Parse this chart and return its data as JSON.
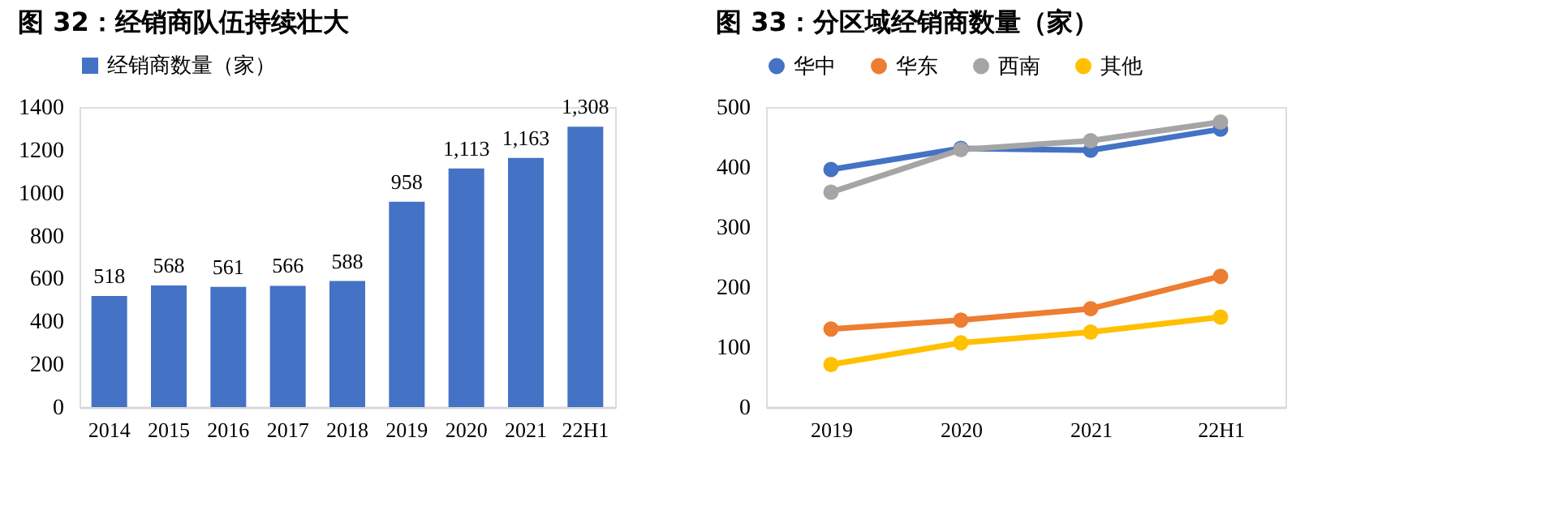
{
  "chart_data": [
    {
      "type": "bar",
      "title": "图 32：经销商队伍持续壮大",
      "categories": [
        "2014",
        "2015",
        "2016",
        "2017",
        "2018",
        "2019",
        "2020",
        "2021",
        "22H1"
      ],
      "series": [
        {
          "name": "经销商数量（家）",
          "color": "#4472c4",
          "values": [
            518,
            568,
            561,
            566,
            588,
            958,
            1113,
            1163,
            1308
          ],
          "value_labels": [
            "518",
            "568",
            "561",
            "566",
            "588",
            "958",
            "1,113",
            "1,163",
            "1,308"
          ]
        }
      ],
      "ylim": [
        0,
        1400
      ],
      "yticks": [
        0,
        200,
        400,
        600,
        800,
        1000,
        1200,
        1400
      ],
      "grid": false,
      "legend": "top"
    },
    {
      "type": "line",
      "title": "图 33：分区域经销商数量（家）",
      "categories": [
        "2019",
        "2020",
        "2021",
        "22H1"
      ],
      "series": [
        {
          "name": "华中",
          "color": "#4472c4",
          "values": [
            396,
            431,
            428,
            463
          ]
        },
        {
          "name": "华东",
          "color": "#ed7d31",
          "values": [
            130,
            145,
            164,
            218
          ]
        },
        {
          "name": "西南",
          "color": "#a5a5a5",
          "values": [
            358,
            429,
            444,
            475
          ]
        },
        {
          "name": "其他",
          "color": "#ffc000",
          "values": [
            71,
            107,
            125,
            150
          ]
        }
      ],
      "ylim": [
        0,
        500
      ],
      "yticks": [
        0,
        100,
        200,
        300,
        400,
        500
      ],
      "grid": false,
      "legend": "top",
      "marker": "circle",
      "line_style": "solid"
    }
  ]
}
